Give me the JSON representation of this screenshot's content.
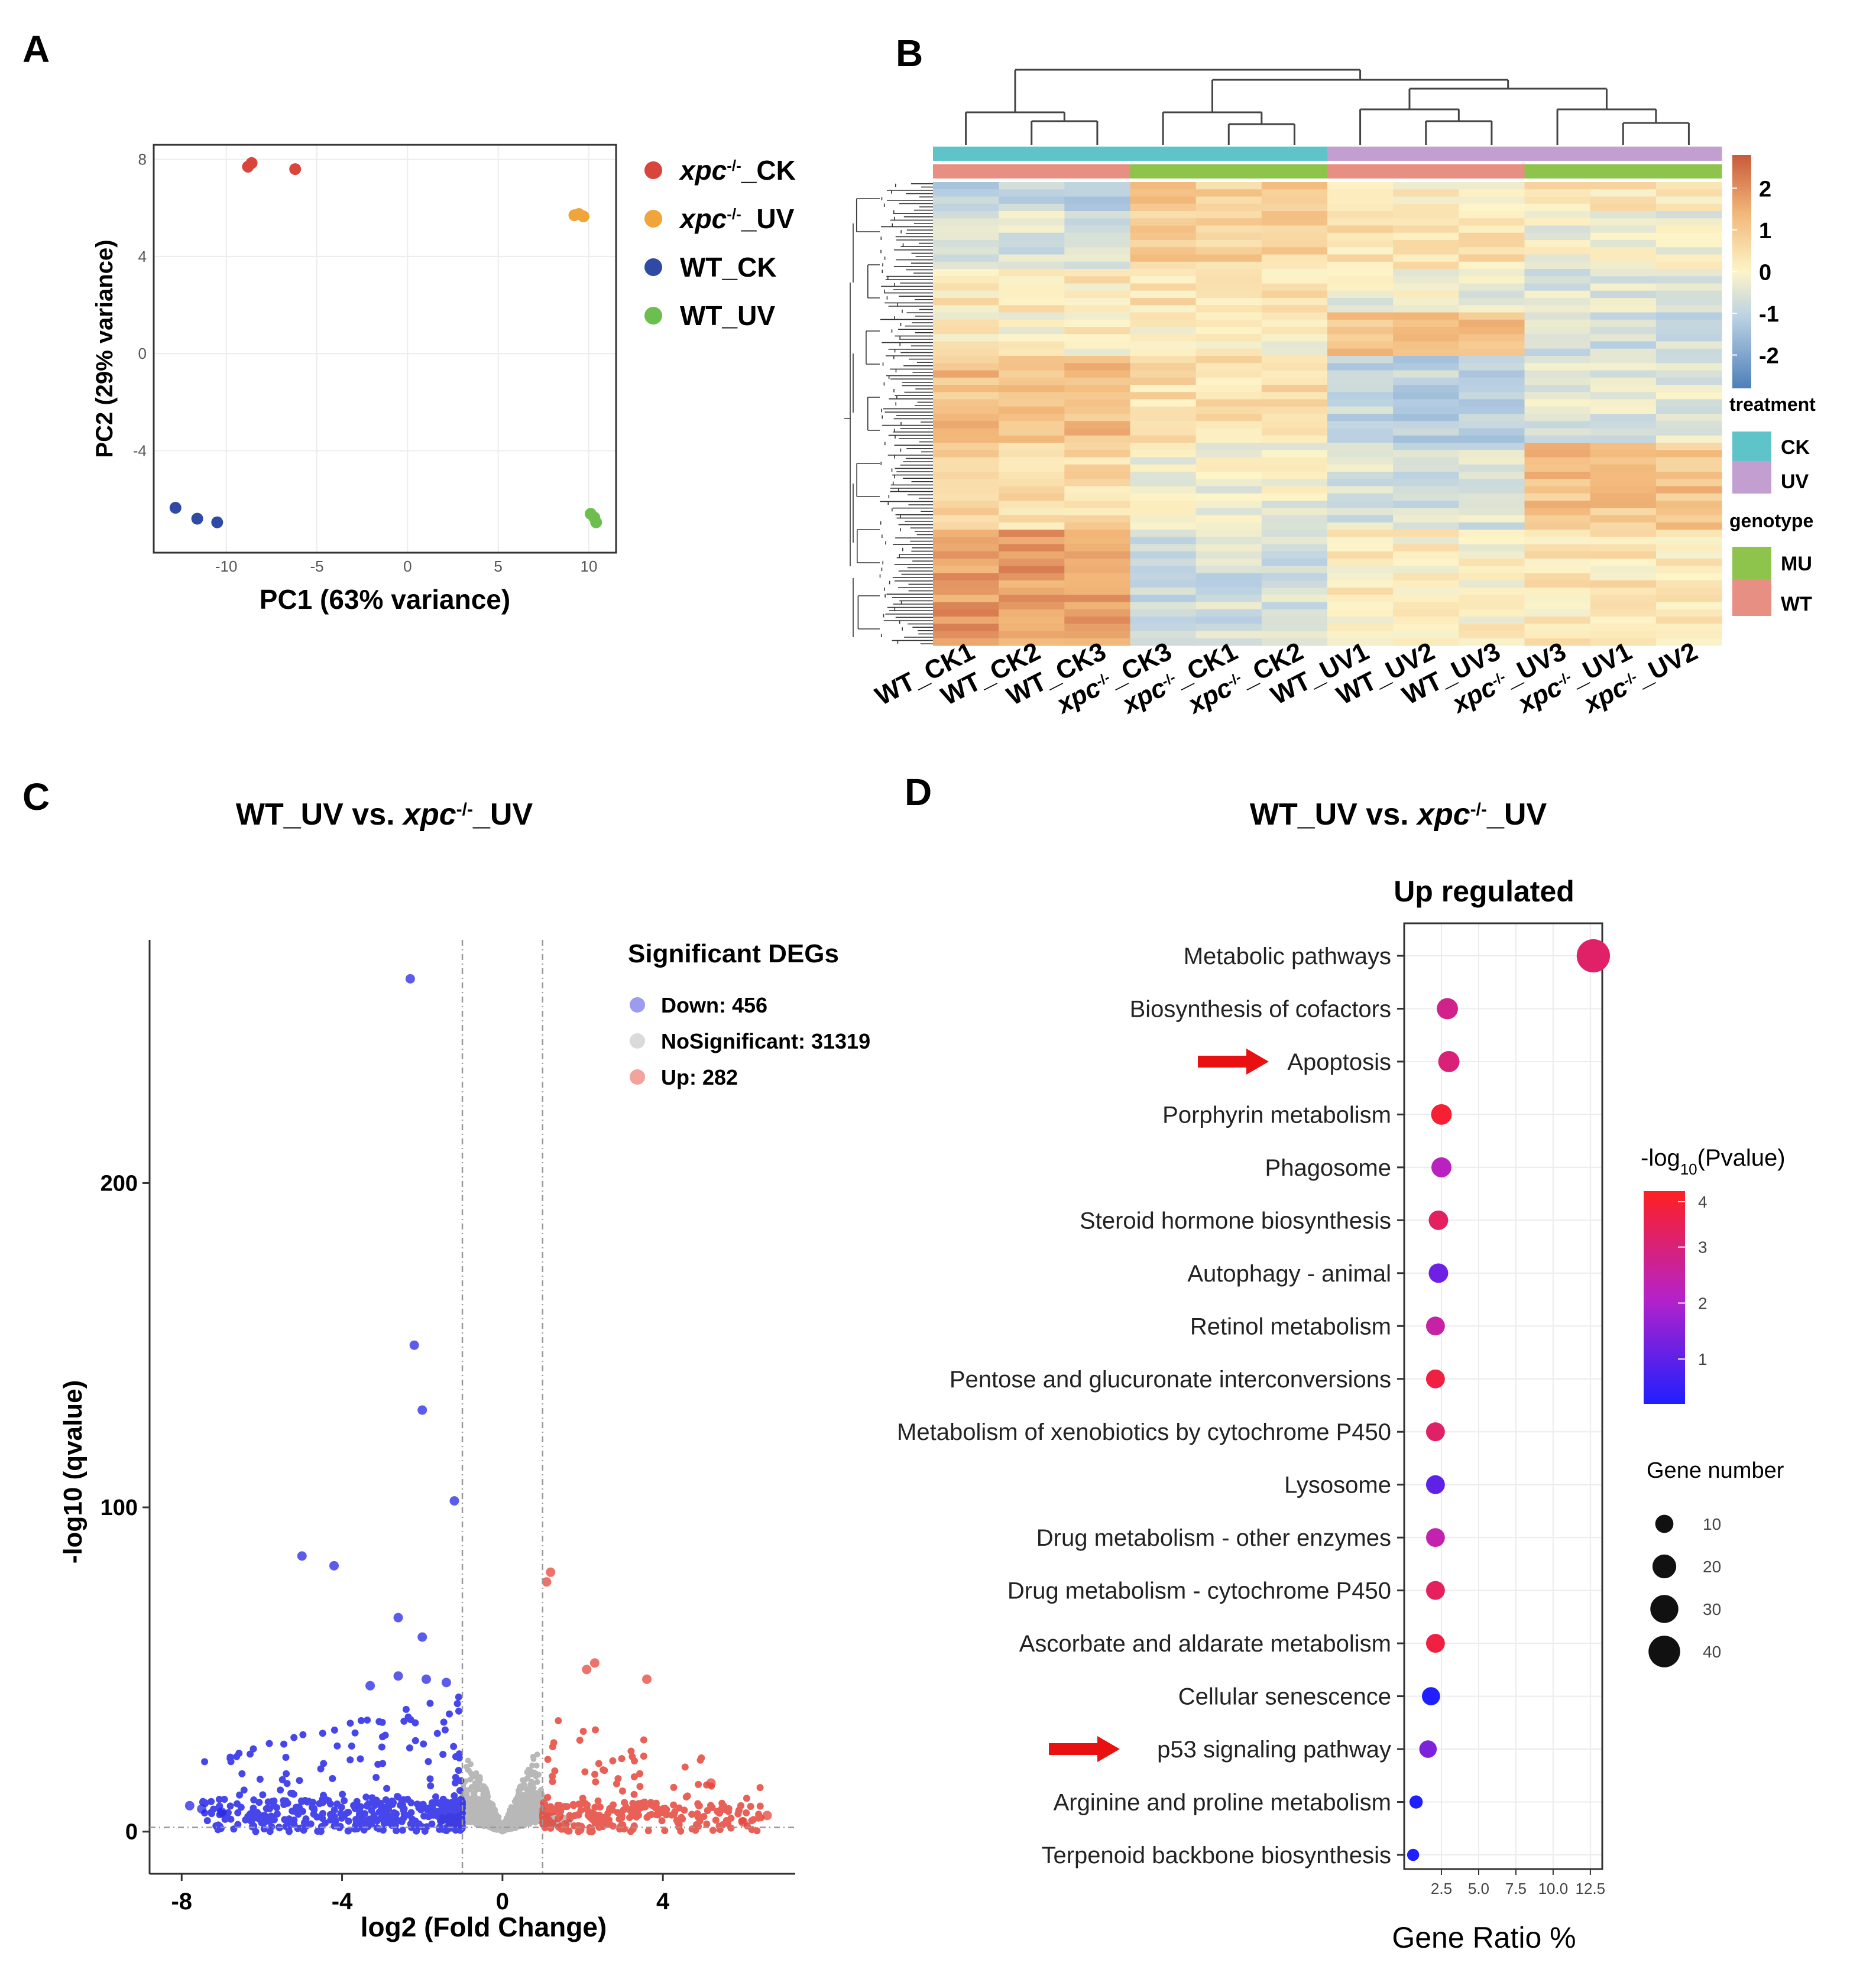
{
  "panel_letters": {
    "a": "A",
    "b": "B",
    "c": "C",
    "d": "D"
  },
  "colors": {
    "xpc_ck": "#d9453a",
    "xpc_uv": "#f0a43a",
    "wt_ck": "#2f4aa4",
    "wt_uv": "#6cbf4e",
    "down": "#2626e6",
    "ns": "#b8b8b8",
    "up": "#e5443a",
    "ck": "#5ec4c9",
    "uv": "#c29fd0",
    "mu": "#8ec34c",
    "wt": "#e88f84"
  },
  "chart_data": [
    {
      "id": "pca",
      "type": "scatter",
      "xlabel": "PC1 (63% variance)",
      "ylabel": "PC2 (29% variance)",
      "xlim": [
        -14,
        11.5
      ],
      "ylim": [
        -8.2,
        8.6
      ],
      "xticks": [
        -10,
        -5,
        0,
        5,
        10
      ],
      "xtick_labels": [
        "-10",
        "-5",
        "0",
        "5",
        "10"
      ],
      "yticks": [
        -4,
        0,
        4,
        8
      ],
      "ytick_labels": [
        "-4",
        "0",
        "4",
        "8"
      ],
      "legend": [
        {
          "key": "xpc_ck",
          "pre": "xpc",
          "sup": "-/-",
          "post": "_CK",
          "italic": true
        },
        {
          "key": "xpc_uv",
          "pre": "xpc",
          "sup": "-/-",
          "post": "_UV",
          "italic": true
        },
        {
          "key": "wt_ck",
          "pre": "WT_CK",
          "sup": "",
          "post": "",
          "italic": false
        },
        {
          "key": "wt_uv",
          "pre": "WT_UV",
          "sup": "",
          "post": "",
          "italic": false
        }
      ],
      "series": [
        {
          "key": "xpc_ck",
          "name": "xpc-/-_CK",
          "points": [
            [
              -8.8,
              7.7
            ],
            [
              -8.6,
              7.85
            ],
            [
              -6.2,
              7.6
            ]
          ]
        },
        {
          "key": "xpc_uv",
          "name": "xpc-/-_UV",
          "points": [
            [
              9.2,
              5.7
            ],
            [
              9.45,
              5.75
            ],
            [
              9.7,
              5.65
            ]
          ]
        },
        {
          "key": "wt_ck",
          "name": "WT_CK",
          "points": [
            [
              -12.8,
              -6.35
            ],
            [
              -11.6,
              -6.8
            ],
            [
              -10.5,
              -6.95
            ]
          ]
        },
        {
          "key": "wt_uv",
          "name": "WT_UV",
          "points": [
            [
              10.1,
              -6.6
            ],
            [
              10.3,
              -6.75
            ],
            [
              10.4,
              -6.95
            ]
          ]
        }
      ]
    },
    {
      "id": "heatmap",
      "type": "heatmap",
      "samples": [
        "WT_CK1",
        "WT_CK2",
        "WT_CK3",
        "xpc-/-_CK3",
        "xpc-/-_CK1",
        "xpc-/-_CK2",
        "WT_UV1",
        "WT_UV2",
        "WT_UV3",
        "xpc-/-_UV3",
        "xpc-/-_UV1",
        "xpc-/-_UV2"
      ],
      "treatment": [
        "CK",
        "CK",
        "CK",
        "CK",
        "CK",
        "CK",
        "UV",
        "UV",
        "UV",
        "UV",
        "UV",
        "UV"
      ],
      "genotype": [
        "WT",
        "WT",
        "WT",
        "MU",
        "MU",
        "MU",
        "WT",
        "WT",
        "WT",
        "MU",
        "MU",
        "MU"
      ],
      "colorbar_ticks": [
        "2",
        "1",
        "0",
        "-1",
        "-2"
      ],
      "colorbar_range": [
        -2.8,
        2.8
      ],
      "legend_treatment_title": "treatment",
      "legend_treatment": [
        "CK",
        "UV"
      ],
      "legend_genotype_title": "genotype",
      "legend_genotype": [
        "MU",
        "WT"
      ]
    },
    {
      "id": "volcano",
      "type": "scatter",
      "title_pre": "WT_UV vs. ",
      "title_it": "xpc",
      "title_sup": "-/-",
      "title_post": "_UV",
      "xlabel": "log2 (Fold Change)",
      "ylabel": "-log10 (qvalue)",
      "xlim": [
        -8.8,
        7.3
      ],
      "ylim": [
        -13,
        275
      ],
      "xticks": [
        -8,
        -4,
        0,
        4
      ],
      "xtick_labels": [
        "-8",
        "-4",
        "0",
        "4"
      ],
      "yticks": [
        0,
        100,
        200
      ],
      "ytick_labels": [
        "0",
        "100",
        "200"
      ],
      "thresholds": [
        -1,
        1
      ],
      "legend_title": "Significant DEGs",
      "legend": [
        {
          "key": "down",
          "label": "Down: 456"
        },
        {
          "key": "ns",
          "label": "NoSignificant: 31319"
        },
        {
          "key": "up",
          "label": "Up: 282"
        }
      ],
      "counts": {
        "down": 456,
        "ns": 31319,
        "up": 282
      },
      "highlight_points": [
        [
          -2.3,
          263
        ],
        [
          -2.2,
          150
        ],
        [
          -2.0,
          130
        ],
        [
          -1.2,
          102
        ],
        [
          -5.0,
          85
        ],
        [
          -4.2,
          82
        ],
        [
          -2.6,
          66
        ],
        [
          -2.0,
          60
        ],
        [
          -3.3,
          45
        ],
        [
          -1.9,
          47
        ],
        [
          -2.6,
          48
        ],
        [
          -1.4,
          46
        ],
        [
          1.2,
          80
        ],
        [
          1.1,
          77
        ],
        [
          2.3,
          52
        ],
        [
          3.6,
          47
        ],
        [
          2.1,
          50
        ],
        [
          5.2,
          15
        ],
        [
          6.6,
          5
        ],
        [
          6.0,
          3
        ],
        [
          -7.8,
          8
        ],
        [
          -7.5,
          7
        ],
        [
          -7.0,
          6
        ]
      ]
    },
    {
      "id": "kegg",
      "type": "scatter",
      "title_pre": "WT_UV vs. ",
      "title_it": "xpc",
      "title_sup": "-/-",
      "title_post": "_UV",
      "subtitle": "Up regulated",
      "xlabel": "Gene Ratio %",
      "xlim": [
        0,
        13.3
      ],
      "xticks": [
        2.5,
        5.0,
        7.5,
        10.0,
        12.5
      ],
      "xtick_labels": [
        "2.5",
        "5.0",
        "7.5",
        "10.0",
        "12.5"
      ],
      "categories": [
        "Metabolic pathways",
        "Biosynthesis of cofactors",
        "Apoptosis",
        "Porphyrin metabolism",
        "Phagosome",
        "Steroid hormone biosynthesis",
        "Autophagy - animal",
        "Retinol metabolism",
        "Pentose and glucuronate interconversions",
        "Metabolism of xenobiotics by cytochrome P450",
        "Lysosome",
        "Drug metabolism - other enzymes",
        "Drug metabolism - cytochrome P450",
        "Ascorbate and aldarate metabolism",
        "Cellular senescence",
        "p53 signaling pathway",
        "Arginine and proline metabolism",
        "Terpenoid backbone biosynthesis"
      ],
      "gene_ratio": [
        12.7,
        2.9,
        3.0,
        2.5,
        2.5,
        2.3,
        2.3,
        2.1,
        2.1,
        2.1,
        2.1,
        2.1,
        2.1,
        2.1,
        1.8,
        1.6,
        0.8,
        0.6
      ],
      "neg_log10_p": [
        3.2,
        2.8,
        3.0,
        3.8,
        2.2,
        3.3,
        1.2,
        2.5,
        3.6,
        3.2,
        1.0,
        2.4,
        3.3,
        3.6,
        0.2,
        1.4,
        0.1,
        0.05
      ],
      "gene_number": [
        45,
        15,
        15,
        14,
        13,
        12,
        12,
        11,
        11,
        11,
        11,
        11,
        11,
        11,
        10,
        9,
        4,
        3
      ],
      "highlighted": [
        "Apoptosis",
        "p53 signaling pathway"
      ],
      "color_legend_title_pre": "-log",
      "color_legend_title_sub": "10",
      "color_legend_title_post": "(Pvalue)",
      "color_ticks": [
        4,
        3,
        2,
        1
      ],
      "color_range": [
        0.2,
        4.0
      ],
      "size_legend_title": "Gene number",
      "size_ticks": [
        10,
        20,
        30,
        40
      ]
    }
  ]
}
